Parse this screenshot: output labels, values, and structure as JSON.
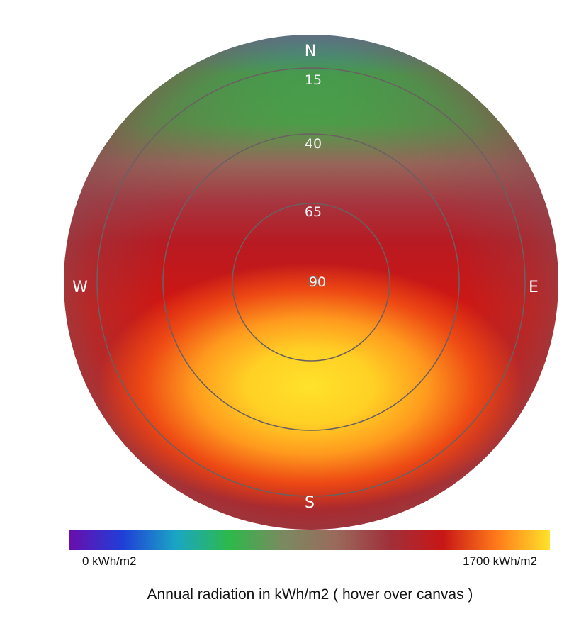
{
  "chart_data": {
    "type": "heatmap",
    "projection": "polar",
    "compass": {
      "north": "N",
      "east": "E",
      "south": "S",
      "west": "W"
    },
    "elevation_rings": [
      "15",
      "40",
      "65",
      "90"
    ],
    "colorbar": {
      "min_label": "0 kWh/m2",
      "max_label": "1700  kWh/m2",
      "min": 0,
      "max": 1700,
      "colors": [
        "#6a0dad",
        "#1f3fd8",
        "#1aa6c4",
        "#2db94a",
        "#7a8a60",
        "#9a6a5c",
        "#a0303a",
        "#c81616",
        "#ff7a1a",
        "#ffe22a"
      ]
    },
    "caption": "Annual radiation in kWh/m2 ( hover over canvas )",
    "region_values_kwh": {
      "north_edge": 600,
      "north_mid": 850,
      "center": 1250,
      "south_core": 1650,
      "east_west_edge": 1150
    }
  }
}
